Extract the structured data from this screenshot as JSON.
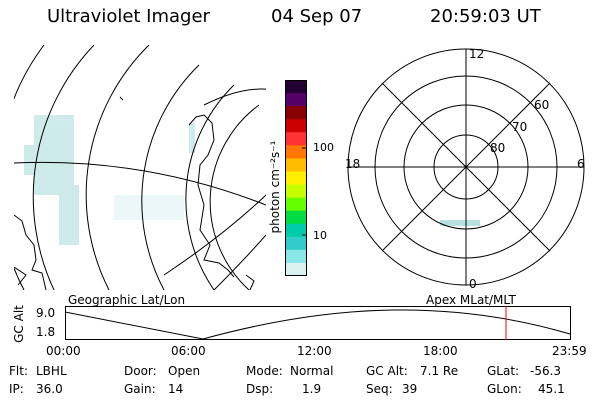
{
  "header": {
    "instrument": "Ultraviolet Imager",
    "date": "04 Sep 07",
    "time": "20:59:03 UT"
  },
  "geo_panel": {
    "label": "Geographic Lat/Lon"
  },
  "colorbar": {
    "unit_label": "photon cm⁻²s⁻¹",
    "ticks": [
      "100",
      "10"
    ],
    "scale": "log",
    "colors": [
      "#220033",
      "#550066",
      "#880000",
      "#cc0000",
      "#ff3333",
      "#ff7700",
      "#ffbb00",
      "#ffee00",
      "#c8ff00",
      "#66ff00",
      "#00dd44",
      "#00ccaa",
      "#33cccc",
      "#88e6e6",
      "#d8f2f2"
    ]
  },
  "polar_panel": {
    "label": "Apex MLat/MLT",
    "mlt_labels": [
      "12",
      "18",
      "6",
      "0"
    ],
    "lat_labels": [
      "60",
      "70",
      "80"
    ]
  },
  "altitude_strip": {
    "axis_label": "GC Alt",
    "y_ticks": [
      "9.0",
      "1.8"
    ],
    "x_ticks": [
      "00:00",
      "06:00",
      "12:00",
      "18:00",
      "23:59"
    ],
    "current_time_marker": "20:59:03",
    "marker_color": "#ff0000"
  },
  "status": {
    "row1": [
      {
        "label": "Flt:",
        "value": "LBHL"
      },
      {
        "label": "Door:",
        "value": "Open"
      },
      {
        "label": "Mode:",
        "value": "Normal"
      },
      {
        "label": "GC Alt:",
        "value": "7.1 Re"
      },
      {
        "label": "GLat:",
        "value": "-56.3"
      }
    ],
    "row2": [
      {
        "label": "IP:",
        "value": "36.0"
      },
      {
        "label": "Gain:",
        "value": "14"
      },
      {
        "label": "Dsp:",
        "value": "1.9"
      },
      {
        "label": "Seq:",
        "value": "39"
      },
      {
        "label": "GLon:",
        "value": "45.1"
      }
    ]
  }
}
